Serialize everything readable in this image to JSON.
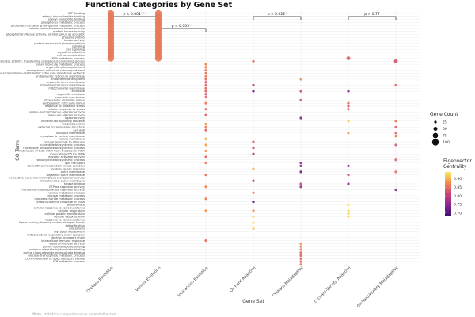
{
  "chart_data": {
    "type": "scatter",
    "title": "Functional Categories by Gene Set",
    "xlabel": "Gene Set",
    "ylabel": "GO Term",
    "categories": [
      "Orchard Evolution",
      "Variety Evolution",
      "Interaction Evolution",
      "Orchard Adaptive",
      "Orchard Maladaptive",
      "Orchard-Variety Adaptive",
      "Orchard-Variety Maladaptive"
    ],
    "go_terms": [
      "ATP binding",
      "adenyl ribonucleotide binding",
      "adenyl nucleotide binding",
      "phosphorus metabolic process",
      "phosphate-containing compound metabolic process",
      "protein serine/threonine kinase activity",
      "protein kinase activity",
      "phosphotransferase activity, alcohol group as acceptor",
      "phosphorylation",
      "kinase activity",
      "protein amino acid phosphorylation",
      "signaling",
      "cell signaling",
      "signal transduction",
      "cell communication",
      "RNA metabolic process",
      "transferase activity, transferring phosphorus-containing groups",
      "small molecule metabolic process",
      "organelle subcompartment",
      "endoplasmic reticulum subcompartment",
      "nuclear outer membrane-endoplasmic reticulum membrane network",
      "endoplasmic reticulum membrane",
      "endomembrane system",
      "organelle inner membrane",
      "mitochondrial inner membrane",
      "mitochondrial membrane",
      "envelope",
      "organelle envelope",
      "organelle membrane",
      "intracellular organelle lumen",
      "endoplasmic reticulum lumen",
      "response to oxidative stress",
      "cellular response to stress",
      "protein-macromolecule adaptor activity",
      "molecular adaptor activity",
      "ligase activity",
      "intracellular signaling cassette",
      "Golgi apparatus",
      "external encapsulating structure",
      "cell wall",
      "vacuolar membrane",
      "cytoplasmic vesicle membrane",
      "vesicle membrane",
      "cellular response to stimulus",
      "nucleotide biosynthetic process",
      "nucleoside phosphate biosynthetic process",
      "maturation of 5.8S rRNA from tricistronic rRNA",
      "maturation of 5.8S rRNA",
      "enzyme activator activity",
      "carbohydrate biosynthetic process",
      "lipid transport",
      "serine/threonine protein kinase complex",
      "protein kinase complex",
      "outer membrane",
      "organelle outer membrane",
      "nucleotide-sugar transmembrane transporter activity",
      "mitochondrial outer membrane",
      "kinase binding",
      "GTPase regulator activity",
      "nucleoside-triphosphatase regulator activity",
      "hexose metabolic process",
      "glucose metabolic process",
      "monosaccharide metabolic process",
      "endonucleolytic cleavage of rRNA",
      "carbohydrate",
      "cellular response to toxic substance",
      "cellular respiration",
      "cellular protein modification",
      "cellular detoxification",
      "response to toxic substance",
      "ligase activity, forming carbon-nitrogen bonds",
      "detoxification",
      "proteolysis",
      "glycogen metabolism",
      "mitochondrial respiratory chain complex",
      "electron transport chain",
      "intracellular immune response",
      "electron-transfer activity",
      "purine ribonucleotide binding",
      "purine nucleoside triphosphate binding",
      "purine ribonucleoside triphosphate binding",
      "glucose-6-phosphate metabolic process",
      "COPII-coated ER to Golgi transport vesicle",
      "ATP metabolic process"
    ],
    "points": [
      {
        "set": "Orchard Evolution",
        "terms": [
          0,
          1,
          2,
          3,
          4,
          5,
          6,
          7,
          8,
          9,
          10,
          11,
          12,
          13,
          14,
          15
        ],
        "gene_count": 100,
        "centrality": 0.86
      },
      {
        "set": "Variety Evolution",
        "terms": [
          0,
          1,
          2,
          3,
          4,
          5,
          6,
          7,
          8,
          9,
          10,
          11,
          12,
          13,
          14,
          15
        ],
        "gene_count": 100,
        "centrality": 0.86
      },
      {
        "set": "Interaction Evolution",
        "term": 17,
        "gene_count": 25,
        "centrality": 0.87
      },
      {
        "set": "Interaction Evolution",
        "term": 18,
        "gene_count": 25,
        "centrality": 0.86
      },
      {
        "set": "Interaction Evolution",
        "term": 19,
        "gene_count": 25,
        "centrality": 0.86
      },
      {
        "set": "Interaction Evolution",
        "term": 20,
        "gene_count": 25,
        "centrality": 0.85
      },
      {
        "set": "Interaction Evolution",
        "term": 21,
        "gene_count": 25,
        "centrality": 0.86
      },
      {
        "set": "Interaction Evolution",
        "term": 22,
        "gene_count": 25,
        "centrality": 0.85
      },
      {
        "set": "Interaction Evolution",
        "term": 23,
        "gene_count": 25,
        "centrality": 0.83
      },
      {
        "set": "Interaction Evolution",
        "term": 24,
        "gene_count": 25,
        "centrality": 0.84
      },
      {
        "set": "Interaction Evolution",
        "term": 25,
        "gene_count": 25,
        "centrality": 0.85
      },
      {
        "set": "Interaction Evolution",
        "term": 26,
        "gene_count": 25,
        "centrality": 0.84
      },
      {
        "set": "Interaction Evolution",
        "term": 27,
        "gene_count": 25,
        "centrality": 0.83
      },
      {
        "set": "Interaction Evolution",
        "term": 28,
        "gene_count": 25,
        "centrality": 0.84
      },
      {
        "set": "Interaction Evolution",
        "term": 30,
        "gene_count": 25,
        "centrality": 0.86
      },
      {
        "set": "Interaction Evolution",
        "term": 32,
        "gene_count": 25,
        "centrality": 0.85
      },
      {
        "set": "Interaction Evolution",
        "term": 34,
        "gene_count": 25,
        "centrality": 0.84
      },
      {
        "set": "Interaction Evolution",
        "term": 37,
        "gene_count": 25,
        "centrality": 0.88
      },
      {
        "set": "Interaction Evolution",
        "term": 38,
        "gene_count": 25,
        "centrality": 0.86
      },
      {
        "set": "Interaction Evolution",
        "term": 39,
        "gene_count": 25,
        "centrality": 0.84
      },
      {
        "set": "Interaction Evolution",
        "term": 42,
        "gene_count": 25,
        "centrality": 0.9
      },
      {
        "set": "Interaction Evolution",
        "term": 44,
        "gene_count": 25,
        "centrality": 0.89
      },
      {
        "set": "Interaction Evolution",
        "term": 46,
        "gene_count": 25,
        "centrality": 0.88
      },
      {
        "set": "Interaction Evolution",
        "term": 48,
        "gene_count": 25,
        "centrality": 0.84
      },
      {
        "set": "Interaction Evolution",
        "term": 50,
        "gene_count": 25,
        "centrality": 0.86
      },
      {
        "set": "Interaction Evolution",
        "term": 54,
        "gene_count": 25,
        "centrality": 0.85
      },
      {
        "set": "Interaction Evolution",
        "term": 58,
        "gene_count": 25,
        "centrality": 0.87
      },
      {
        "set": "Interaction Evolution",
        "term": 62,
        "gene_count": 25,
        "centrality": 0.86
      },
      {
        "set": "Interaction Evolution",
        "term": 66,
        "gene_count": 25,
        "centrality": 0.88
      },
      {
        "set": "Interaction Evolution",
        "term": 76,
        "gene_count": 25,
        "centrality": 0.85
      },
      {
        "set": "Orchard Adaptive",
        "term": 16,
        "gene_count": 25,
        "centrality": 0.85
      },
      {
        "set": "Orchard Adaptive",
        "term": 24,
        "gene_count": 25,
        "centrality": 0.78
      },
      {
        "set": "Orchard Adaptive",
        "term": 26,
        "gene_count": 25,
        "centrality": 0.72
      },
      {
        "set": "Orchard Adaptive",
        "term": 43,
        "gene_count": 25,
        "centrality": 0.84
      },
      {
        "set": "Orchard Adaptive",
        "term": 45,
        "gene_count": 25,
        "centrality": 0.82
      },
      {
        "set": "Orchard Adaptive",
        "term": 47,
        "gene_count": 25,
        "centrality": 0.79
      },
      {
        "set": "Orchard Adaptive",
        "term": 52,
        "gene_count": 25,
        "centrality": 0.9
      },
      {
        "set": "Orchard Adaptive",
        "term": 56,
        "gene_count": 25,
        "centrality": 0.77
      },
      {
        "set": "Orchard Adaptive",
        "term": 60,
        "gene_count": 25,
        "centrality": 0.86
      },
      {
        "set": "Orchard Adaptive",
        "term": 63,
        "gene_count": 25,
        "centrality": 0.7
      },
      {
        "set": "Orchard Adaptive",
        "term": 66,
        "gene_count": 25,
        "centrality": 0.88
      },
      {
        "set": "Orchard Adaptive",
        "term": 68,
        "gene_count": 25,
        "centrality": 0.93
      },
      {
        "set": "Orchard Adaptive",
        "term": 70,
        "gene_count": 25,
        "centrality": 0.93
      },
      {
        "set": "Orchard Adaptive",
        "term": 72,
        "gene_count": 25,
        "centrality": 0.92
      },
      {
        "set": "Orchard Maladaptive",
        "term": 22,
        "gene_count": 25,
        "centrality": 0.88
      },
      {
        "set": "Orchard Maladaptive",
        "term": 26,
        "gene_count": 25,
        "centrality": 0.82
      },
      {
        "set": "Orchard Maladaptive",
        "term": 29,
        "gene_count": 25,
        "centrality": 0.83
      },
      {
        "set": "Orchard Maladaptive",
        "term": 35,
        "gene_count": 25,
        "centrality": 0.74
      },
      {
        "set": "Orchard Maladaptive",
        "term": 50,
        "gene_count": 25,
        "centrality": 0.75
      },
      {
        "set": "Orchard Maladaptive",
        "term": 51,
        "gene_count": 25,
        "centrality": 0.75
      },
      {
        "set": "Orchard Maladaptive",
        "term": 53,
        "gene_count": 25,
        "centrality": 0.73
      },
      {
        "set": "Orchard Maladaptive",
        "term": 57,
        "gene_count": 25,
        "centrality": 0.82
      },
      {
        "set": "Orchard Maladaptive",
        "term": 58,
        "gene_count": 25,
        "centrality": 0.76
      },
      {
        "set": "Orchard Maladaptive",
        "term": 77,
        "gene_count": 25,
        "centrality": 0.88
      },
      {
        "set": "Orchard Maladaptive",
        "term": 78,
        "gene_count": 25,
        "centrality": 0.87
      },
      {
        "set": "Orchard Maladaptive",
        "term": 79,
        "gene_count": 25,
        "centrality": 0.86
      },
      {
        "set": "Orchard Maladaptive",
        "term": 80,
        "gene_count": 25,
        "centrality": 0.85
      },
      {
        "set": "Orchard Maladaptive",
        "term": 81,
        "gene_count": 25,
        "centrality": 0.84
      },
      {
        "set": "Orchard Maladaptive",
        "term": 82,
        "gene_count": 25,
        "centrality": 0.84
      },
      {
        "set": "Orchard Maladaptive",
        "term": 83,
        "gene_count": 25,
        "centrality": 0.85
      },
      {
        "set": "Orchard Maladaptive",
        "term": 84,
        "gene_count": 25,
        "centrality": 0.86
      },
      {
        "set": "Orchard-Variety Adaptive",
        "term": 15,
        "gene_count": 50,
        "centrality": 0.84
      },
      {
        "set": "Orchard-Variety Adaptive",
        "term": 26,
        "gene_count": 25,
        "centrality": 0.74
      },
      {
        "set": "Orchard-Variety Adaptive",
        "term": 30,
        "gene_count": 25,
        "centrality": 0.85
      },
      {
        "set": "Orchard-Variety Adaptive",
        "term": 31,
        "gene_count": 25,
        "centrality": 0.83
      },
      {
        "set": "Orchard-Variety Adaptive",
        "term": 32,
        "gene_count": 25,
        "centrality": 0.84
      },
      {
        "set": "Orchard-Variety Adaptive",
        "term": 36,
        "gene_count": 25,
        "centrality": 0.92
      },
      {
        "set": "Orchard-Variety Adaptive",
        "term": 40,
        "gene_count": 25,
        "centrality": 0.89
      },
      {
        "set": "Orchard-Variety Adaptive",
        "term": 51,
        "gene_count": 25,
        "centrality": 0.76
      },
      {
        "set": "Orchard-Variety Adaptive",
        "term": 54,
        "gene_count": 25,
        "centrality": 0.83
      },
      {
        "set": "Orchard-Variety Adaptive",
        "term": 57,
        "gene_count": 25,
        "centrality": 0.75
      },
      {
        "set": "Orchard-Variety Adaptive",
        "term": 64,
        "gene_count": 25,
        "centrality": 0.93
      },
      {
        "set": "Orchard-Variety Adaptive",
        "term": 66,
        "gene_count": 25,
        "centrality": 0.93
      },
      {
        "set": "Orchard-Variety Adaptive",
        "term": 67,
        "gene_count": 25,
        "centrality": 0.93
      },
      {
        "set": "Orchard-Variety Adaptive",
        "term": 68,
        "gene_count": 25,
        "centrality": 0.93
      },
      {
        "set": "Orchard-Variety Maladaptive",
        "term": 16,
        "gene_count": 50,
        "centrality": 0.83
      },
      {
        "set": "Orchard-Variety Maladaptive",
        "term": 24,
        "gene_count": 25,
        "centrality": 0.84
      },
      {
        "set": "Orchard-Variety Maladaptive",
        "term": 36,
        "gene_count": 25,
        "centrality": 0.86
      },
      {
        "set": "Orchard-Variety Maladaptive",
        "term": 38,
        "gene_count": 25,
        "centrality": 0.84
      },
      {
        "set": "Orchard-Variety Maladaptive",
        "term": 40,
        "gene_count": 25,
        "centrality": 0.85
      },
      {
        "set": "Orchard-Variety Maladaptive",
        "term": 41,
        "gene_count": 25,
        "centrality": 0.86
      },
      {
        "set": "Orchard-Variety Maladaptive",
        "term": 44,
        "gene_count": 25,
        "centrality": 0.83
      },
      {
        "set": "Orchard-Variety Maladaptive",
        "term": 49,
        "gene_count": 25,
        "centrality": 0.84
      },
      {
        "set": "Orchard-Variety Maladaptive",
        "term": 53,
        "gene_count": 25,
        "centrality": 0.85
      },
      {
        "set": "Orchard-Variety Maladaptive",
        "term": 59,
        "gene_count": 25,
        "centrality": 0.75
      }
    ],
    "significance_brackets": [
      {
        "from": "Orchard Evolution",
        "to": "Variety Evolution",
        "label": "p < 0.001***",
        "level": 1
      },
      {
        "from": "Variety Evolution",
        "to": "Interaction Evolution",
        "label": "p = 0.003**",
        "level": 2
      },
      {
        "from": "Orchard Adaptive",
        "to": "Orchard Maladaptive",
        "label": "p = 0.022*",
        "level": 1
      },
      {
        "from": "Orchard-Variety Adaptive",
        "to": "Orchard-Variety Maladaptive",
        "label": "p = 0.77",
        "level": 1
      }
    ],
    "size_legend": {
      "title": "Gene Count",
      "values": [
        25,
        50,
        75,
        100
      ]
    },
    "color_legend": {
      "title_lines": [
        "Eigenvector",
        "Centrality"
      ],
      "ticks": [
        0.7,
        0.75,
        0.8,
        0.85,
        0.9
      ],
      "range": [
        0.68,
        0.94
      ]
    },
    "legend_position": "right",
    "grid": true
  },
  "footnote": "*Note: statistical comparisons via permutation test",
  "colors": {
    "grid": "#e9e9e9",
    "bracket": "#222222"
  }
}
